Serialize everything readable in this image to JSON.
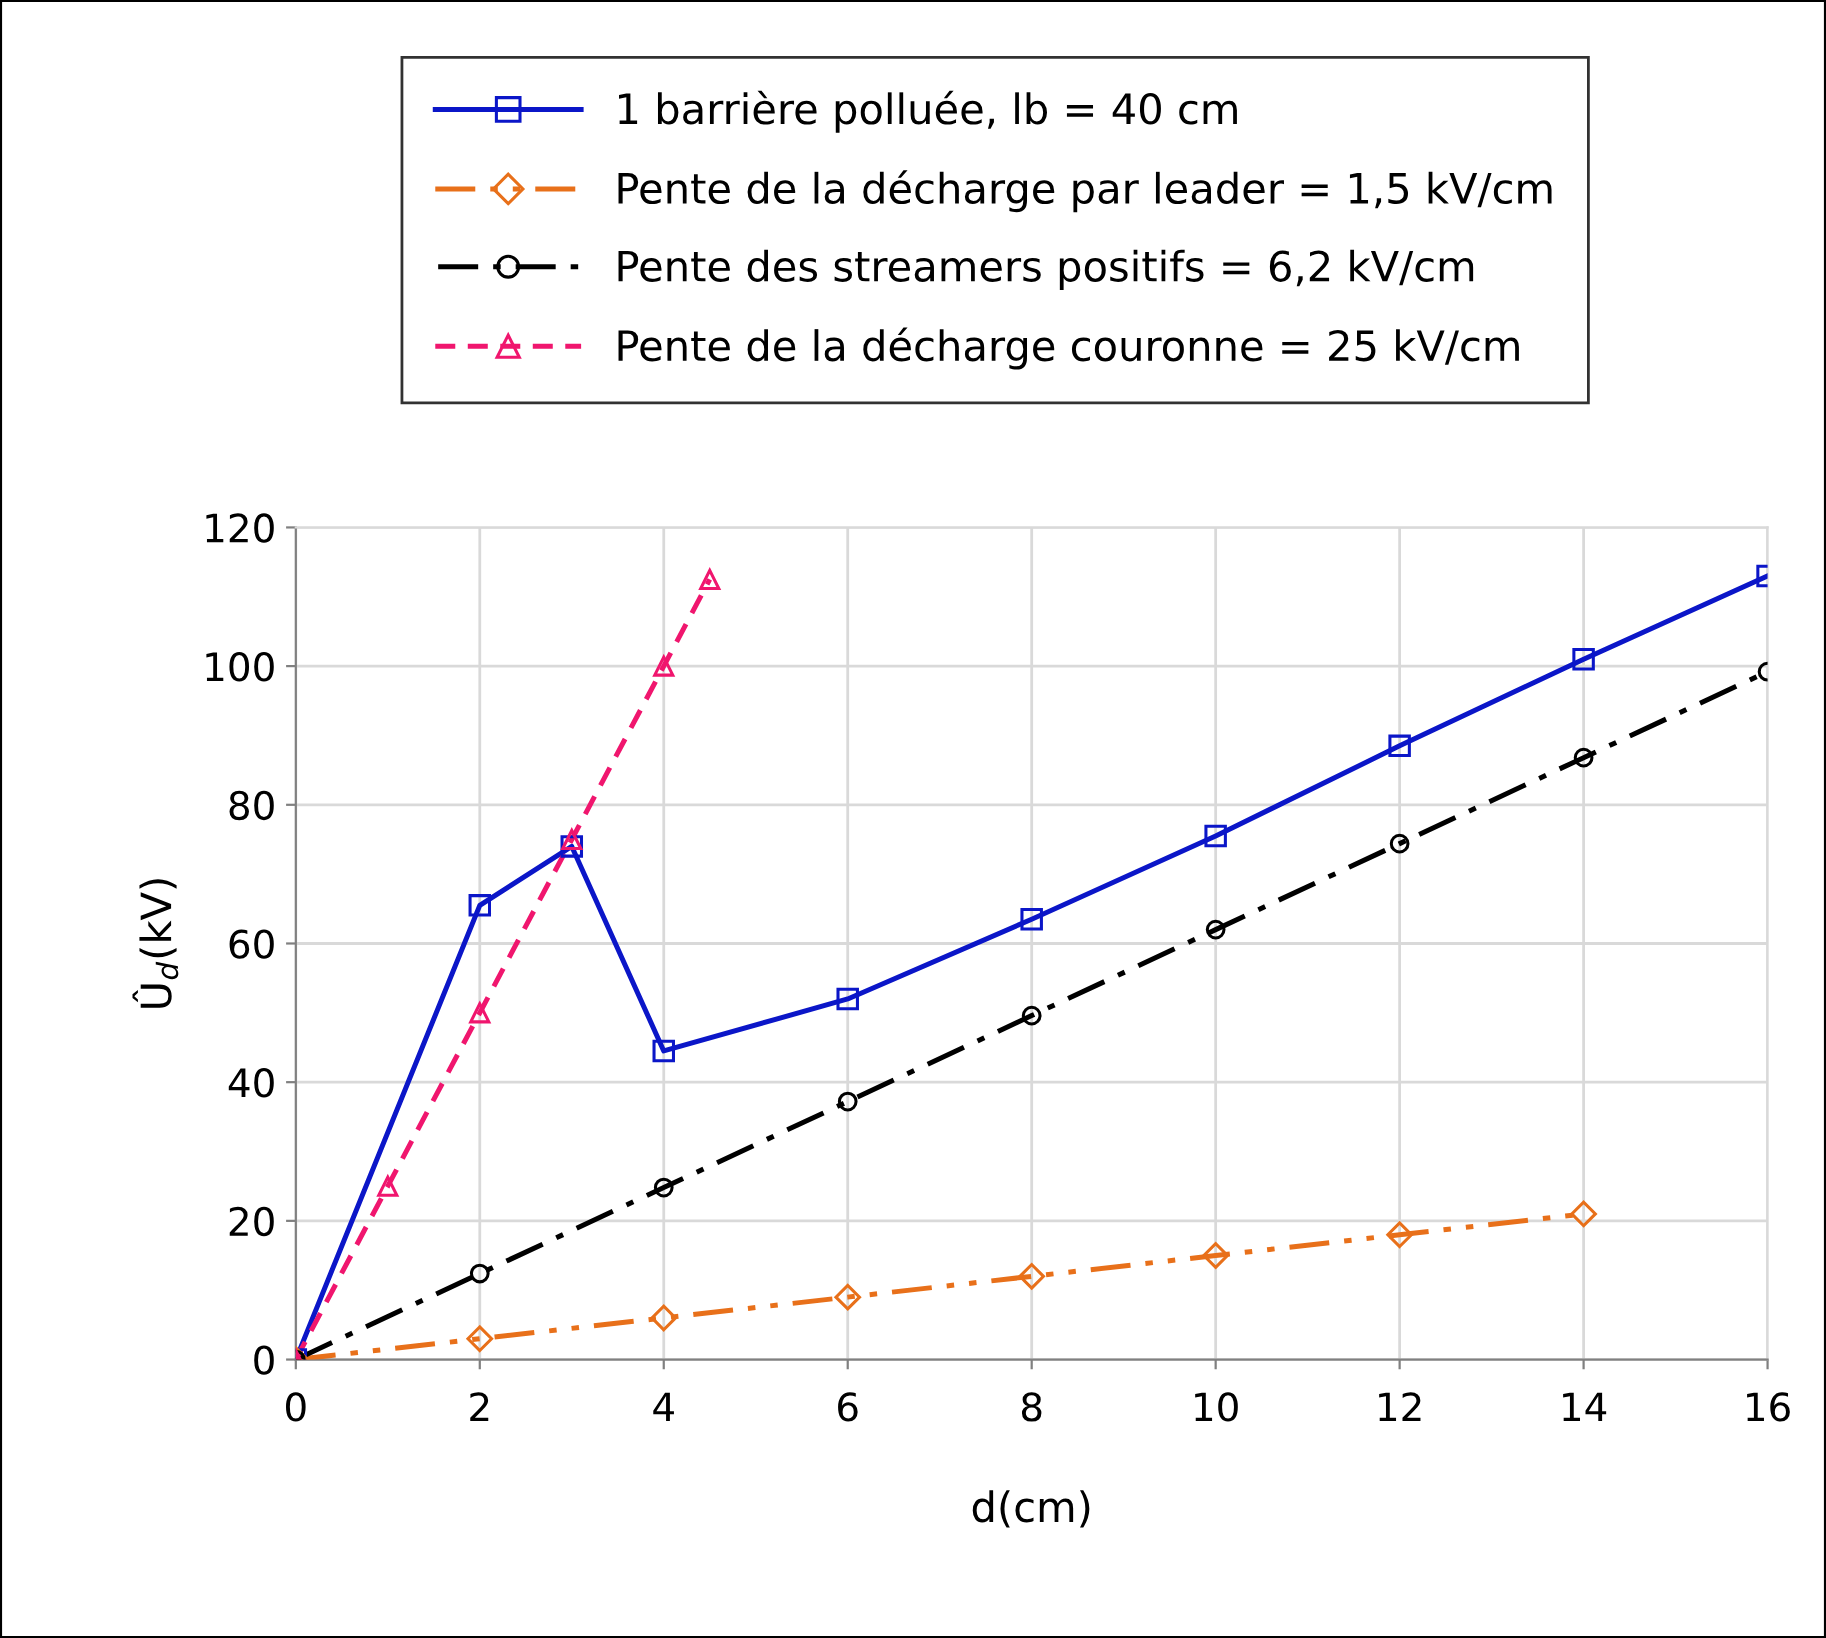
{
  "chart_data": {
    "type": "line",
    "xlabel": "d(cm)",
    "ylabel": "Û$_{d}$(kV)",
    "xlim": [
      0,
      16
    ],
    "xticks": [
      0,
      2,
      4,
      6,
      8,
      10,
      12,
      14,
      16
    ],
    "ylim": [
      0,
      120
    ],
    "yticks": [
      0,
      20,
      40,
      60,
      80,
      100,
      120
    ],
    "grid": true,
    "legend": "top",
    "series": [
      {
        "name": "1 barrière polluée, lb = 40 cm",
        "color": "#0b16c8",
        "marker": "square",
        "line_style": "solid",
        "x": [
          0,
          2,
          3,
          4,
          6,
          8,
          10,
          12,
          14,
          16
        ],
        "values": [
          0,
          65.5,
          74,
          44.5,
          52,
          63.5,
          75.5,
          88.5,
          101,
          113
        ]
      },
      {
        "name": "Pente de la décharge par leader = 1,5 kV/cm",
        "color": "#e8701a",
        "marker": "diamond",
        "line_style": "dashdotdot",
        "x": [
          0,
          2,
          4,
          6,
          8,
          10,
          12,
          14
        ],
        "values": [
          0,
          3,
          6,
          9,
          12,
          15,
          18,
          21
        ]
      },
      {
        "name": "Pente des streamers positifs = 6,2 kV/cm",
        "color": "#000000",
        "marker": "circle",
        "line_style": "dashdot",
        "x": [
          0,
          2,
          4,
          6,
          8,
          10,
          12,
          14,
          16
        ],
        "values": [
          0,
          12.4,
          24.8,
          37.2,
          49.6,
          62,
          74.4,
          86.8,
          99.2
        ]
      },
      {
        "name": "Pente de la décharge couronne = 25 kV/cm",
        "color": "#f0166e",
        "marker": "triangle",
        "line_style": "dashed",
        "x": [
          0,
          1,
          2,
          3,
          4,
          4.5
        ],
        "values": [
          0,
          25,
          50,
          75,
          100,
          112.5
        ]
      }
    ]
  }
}
